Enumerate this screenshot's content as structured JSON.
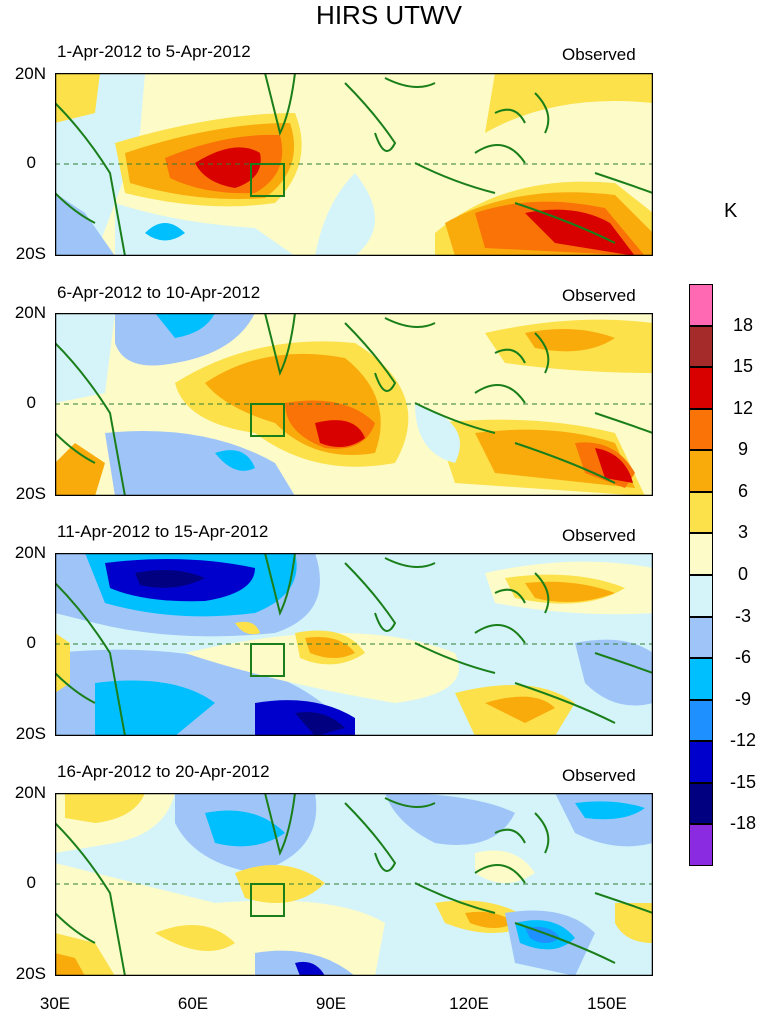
{
  "figure": {
    "title": "HIRS UTWV",
    "colorbar": {
      "unit": "K",
      "colors": [
        "#8a2be2",
        "#000080",
        "#0000cd",
        "#1e90ff",
        "#00bfff",
        "#9fc5f8",
        "#d4f4fa",
        "#fdfbc8",
        "#fce14b",
        "#f9ab0c",
        "#f97306",
        "#d90000",
        "#a52a2a",
        "#ff69b4"
      ],
      "labels": [
        "-18",
        "-15",
        "-12",
        "-9",
        "-6",
        "-3",
        "0",
        "3",
        "6",
        "9",
        "12",
        "15",
        "18"
      ]
    },
    "xaxis": [
      "30E",
      "60E",
      "90E",
      "120E",
      "150E"
    ],
    "yaxis": {
      "north": "20N",
      "eq": "0",
      "south": "20S"
    }
  },
  "panels": [
    {
      "date_range": "1-Apr-2012 to 5-Apr-2012",
      "tag": "Observed"
    },
    {
      "date_range": "6-Apr-2012 to 10-Apr-2012",
      "tag": "Observed"
    },
    {
      "date_range": "11-Apr-2012 to 15-Apr-2012",
      "tag": "Observed"
    },
    {
      "date_range": "16-Apr-2012 to 20-Apr-2012",
      "tag": "Observed"
    }
  ]
}
